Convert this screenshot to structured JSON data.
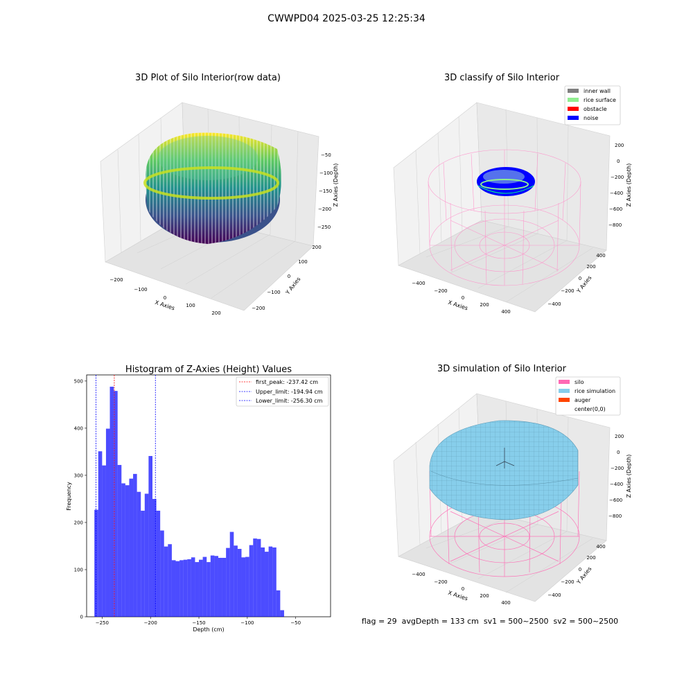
{
  "figure_title": "CWWPD04 2025-03-25 12:25:34",
  "status_text": "flag = 29  avgDepth = 133 cm  sv1 = 500~2500  sv2 = 500~2500",
  "colors": {
    "bars": "#0000ff",
    "first_peak": "#ff0000",
    "limits": "#0000ff",
    "silo": "#ff69b4",
    "rice_simulation": "#87ceeb",
    "auger": "#ff4500",
    "inner_wall": "#808080",
    "rice_surface": "#90ee90",
    "obstacle": "#ff0000",
    "noise": "#0000ff"
  },
  "chart_data": [
    {
      "type": "scatter",
      "title": "3D Plot of Silo Interior(row data)",
      "xlabel": "X Axies",
      "ylabel": "Y Axies",
      "zlabel": "Z Axies (Depth)",
      "x_ticks": [
        "−200",
        "−100",
        "0",
        "100",
        "200"
      ],
      "y_ticks": [
        "−200",
        "−100",
        "0",
        "100",
        "200"
      ],
      "z_ticks": [
        "−50",
        "−100",
        "−150",
        "−200",
        "−250"
      ],
      "colormap": "viridis"
    },
    {
      "type": "scatter",
      "title": "3D classify of Silo Interior",
      "xlabel": "X Axies",
      "ylabel": "Y Axies",
      "zlabel": "Z Axies (Depth)",
      "x_ticks": [
        "−400",
        "−200",
        "0",
        "200",
        "400"
      ],
      "y_ticks": [
        "−400",
        "−200",
        "0",
        "200",
        "400"
      ],
      "z_ticks": [
        "200",
        "0",
        "−200",
        "−400",
        "−600",
        "−800"
      ],
      "legend": [
        "inner wall",
        "rice surface",
        "obstacle",
        "noise"
      ],
      "legend_position": "top-right"
    },
    {
      "type": "bar",
      "title": "Histogram of Z-Axies (Height) Values",
      "xlabel": "Depth (cm)",
      "ylabel": "Frequency",
      "xlim": [
        -266,
        -14
      ],
      "ylim": [
        0,
        513
      ],
      "x_ticks": [
        -250,
        -200,
        -150,
        -100,
        -50
      ],
      "x_tick_labels": [
        "−250",
        "−200",
        "−150",
        "−100",
        "−50"
      ],
      "y_ticks": [
        0,
        100,
        200,
        300,
        400,
        500
      ],
      "bin_start": -258,
      "bin_width": 4,
      "values": [
        227,
        351,
        321,
        399,
        488,
        479,
        322,
        283,
        279,
        293,
        303,
        265,
        225,
        261,
        341,
        250,
        225,
        183,
        149,
        154,
        120,
        118,
        120,
        121,
        122,
        126,
        116,
        121,
        127,
        116,
        130,
        129,
        125,
        125,
        146,
        180,
        151,
        144,
        126,
        127,
        152,
        166,
        165,
        147,
        138,
        149,
        147,
        56,
        14
      ],
      "lines": [
        {
          "label": "first_peak: -237.42 cm",
          "x": -237.42,
          "color": "#ff0000"
        },
        {
          "label": "Upper_limit: -194.94 cm",
          "x": -194.94,
          "color": "#0000ff"
        },
        {
          "label": "Lower_limit: -256.30 cm",
          "x": -256.3,
          "color": "#0000ff"
        }
      ],
      "legend_position": "top-right"
    },
    {
      "type": "scatter",
      "title": "3D simulation of Silo Interior",
      "xlabel": "X Axies",
      "ylabel": "Y Axies",
      "zlabel": "Z Axies (Depth)",
      "x_ticks": [
        "−400",
        "−200",
        "0",
        "200",
        "400"
      ],
      "y_ticks": [
        "−400",
        "−200",
        "0",
        "200",
        "400"
      ],
      "z_ticks": [
        "200",
        "0",
        "−200",
        "−400",
        "−600",
        "−800"
      ],
      "legend": [
        "silo",
        "rice simulation",
        "auger",
        "center(0,0)"
      ],
      "legend_position": "top-right"
    }
  ]
}
